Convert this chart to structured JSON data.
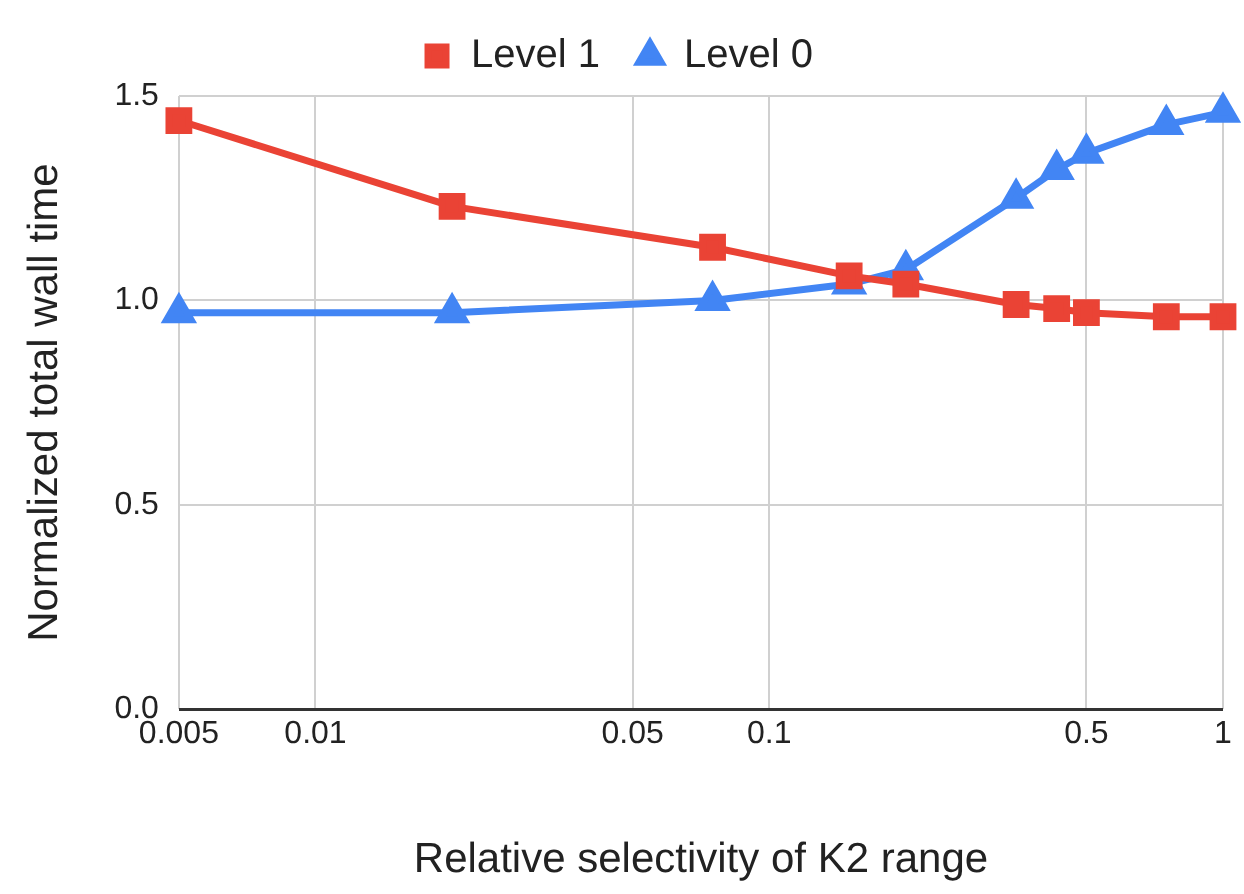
{
  "chart_data": {
    "type": "line",
    "xlabel": "Relative selectivity of K2 range",
    "ylabel": "Normalized total wall time",
    "x": [
      0.005,
      0.02,
      0.075,
      0.15,
      0.2,
      0.35,
      0.43,
      0.5,
      0.75,
      1
    ],
    "series": [
      {
        "name": "Level 0",
        "color": "#4285f4",
        "marker": "triangle",
        "values": [
          0.97,
          0.97,
          1.0,
          1.04,
          1.075,
          1.25,
          1.32,
          1.36,
          1.43,
          1.46
        ]
      },
      {
        "name": "Level 1",
        "color": "#ea4335",
        "marker": "square",
        "values": [
          1.44,
          1.23,
          1.13,
          1.06,
          1.04,
          0.99,
          0.98,
          0.97,
          0.96,
          0.96
        ]
      }
    ],
    "log": "x",
    "xlim": [
      0.005,
      1
    ],
    "xticks": [
      0.005,
      0.01,
      0.05,
      0.1,
      0.5,
      1
    ],
    "ylim": [
      0,
      1.5
    ],
    "yticks": [
      {
        "value": 0,
        "label": "0.0"
      },
      {
        "value": 0.5,
        "label": "0.5"
      },
      {
        "value": 1,
        "label": "1.0"
      },
      {
        "value": 1.5,
        "label": "1.5"
      }
    ],
    "grid": true,
    "legend": "top",
    "line_style": "solid"
  }
}
